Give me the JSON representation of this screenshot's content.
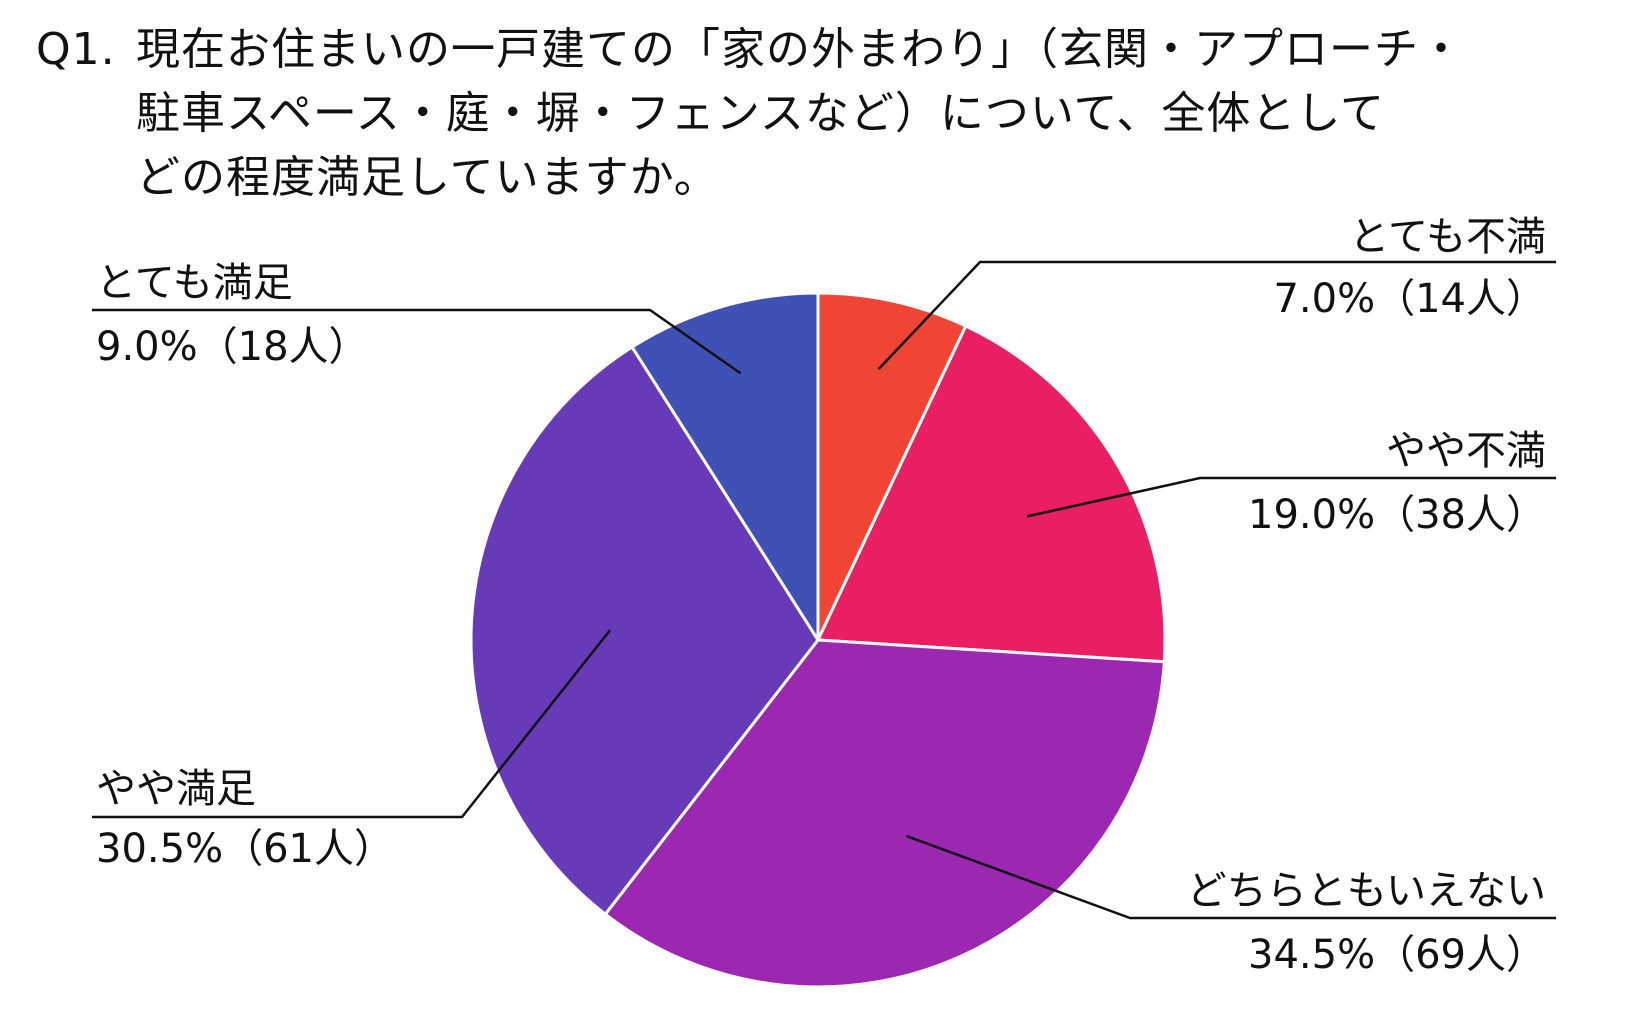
{
  "question": {
    "number": "Q1.",
    "lines": [
      "現在お住まいの一戸建ての「家の外まわり」（玄関・アプローチ・",
      "駐車スペース・庭・塀・フェンスなど）について、全体として",
      "どの程度満足していますか。"
    ]
  },
  "chart_data": {
    "type": "pie",
    "title": "Q1. 現在お住まいの一戸建ての「家の外まわり」（玄関・アプローチ・駐車スペース・庭・塀・フェンスなど）について、全体としてどの程度満足していますか。",
    "start_angle_deg": 0,
    "direction": "clockwise",
    "slices": [
      {
        "label": "とても不満",
        "value": 7.0,
        "count": 14,
        "value_text": "7.0%（14人）",
        "color": "#f04435"
      },
      {
        "label": "やや不満",
        "value": 19.0,
        "count": 38,
        "value_text": "19.0%（38人）",
        "color": "#e91e63"
      },
      {
        "label": "どちらともいえない",
        "value": 34.5,
        "count": 69,
        "value_text": "34.5%（69人）",
        "color": "#9c27b0"
      },
      {
        "label": "やや満足",
        "value": 30.5,
        "count": 61,
        "value_text": "30.5%（61人）",
        "color": "#673ab7"
      },
      {
        "label": "とても満足",
        "value": 9.0,
        "count": 18,
        "value_text": "9.0%（18人）",
        "color": "#3f51b5"
      }
    ]
  }
}
